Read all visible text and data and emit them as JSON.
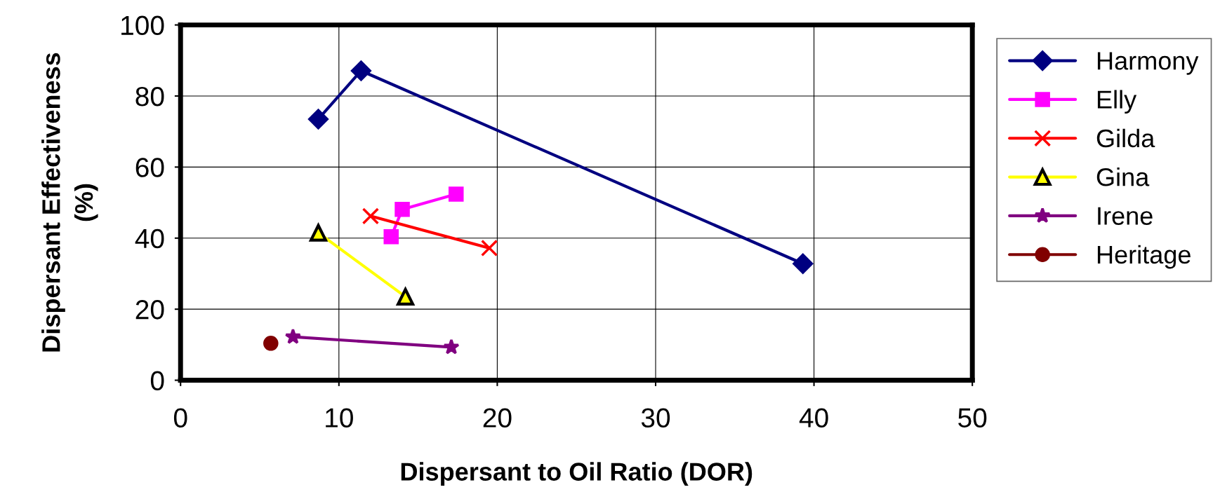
{
  "chart_data": {
    "type": "line",
    "xlabel": "Dispersant to Oil Ratio (DOR)",
    "ylabel": "Dispersant Effectiveness\n(%)",
    "xlim": [
      0,
      50
    ],
    "xticks": [
      0,
      10,
      20,
      30,
      40,
      50
    ],
    "ylim": [
      0,
      100
    ],
    "yticks": [
      0,
      20,
      40,
      60,
      80,
      100
    ],
    "grid": true,
    "legend": "right",
    "line_style": "solid",
    "series": [
      {
        "name": "Harmony",
        "color": "#000080",
        "marker": "diamond",
        "x": [
          8.7,
          11.4,
          39.3
        ],
        "values": [
          73.5,
          87.1,
          32.8
        ]
      },
      {
        "name": "Elly",
        "color": "#ff00ff",
        "marker": "square",
        "x": [
          13.3,
          14.0,
          17.4
        ],
        "values": [
          40.4,
          48.1,
          52.4
        ]
      },
      {
        "name": "Gilda",
        "color": "#ff0000",
        "marker": "cross",
        "x": [
          12.0,
          19.5
        ],
        "values": [
          46.2,
          37.2
        ]
      },
      {
        "name": "Gina",
        "color": "#ffff00",
        "marker": "triangle",
        "x": [
          8.7,
          14.2
        ],
        "values": [
          41.5,
          23.5
        ]
      },
      {
        "name": "Irene",
        "color": "#800080",
        "marker": "star",
        "x": [
          7.1,
          17.1
        ],
        "values": [
          12.2,
          9.3
        ]
      },
      {
        "name": "Heritage",
        "color": "#800000",
        "marker": "circle",
        "x": [
          5.7
        ],
        "values": [
          10.4
        ]
      }
    ]
  }
}
